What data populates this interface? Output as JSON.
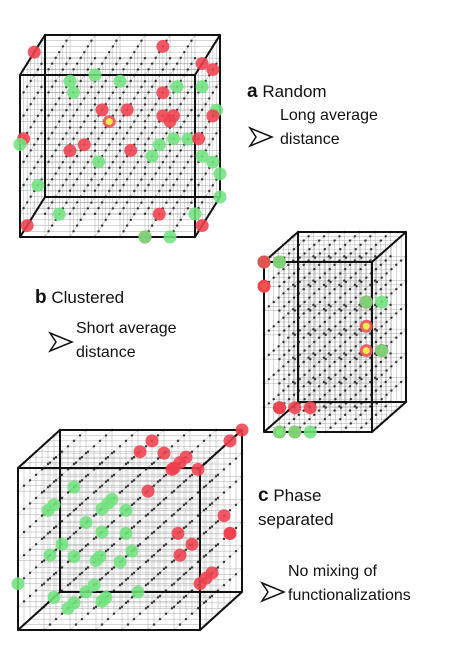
{
  "panels": [
    {
      "letter": "a",
      "title": "Random",
      "note_lines": [
        "Long average",
        "distance"
      ]
    },
    {
      "letter": "b",
      "title": "Clustered",
      "note_lines": [
        "Short average",
        "distance"
      ]
    },
    {
      "letter": "c",
      "title_lines": [
        "Phase",
        "separated"
      ],
      "note_lines": [
        "No mixing of",
        "functionalizations"
      ]
    }
  ]
}
